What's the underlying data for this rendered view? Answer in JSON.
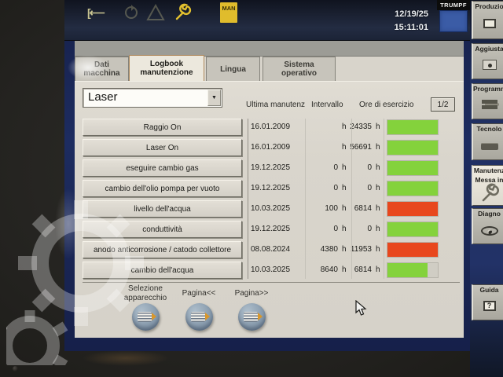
{
  "statusbar": {
    "date": "12/19/25",
    "time": "15:11:01",
    "man_badge": "MAN"
  },
  "brand": {
    "logo_text": "TRUMPF"
  },
  "tabs": [
    {
      "label": "Dati macchina",
      "active": false
    },
    {
      "label": "Logbook manutenzione",
      "active": true
    },
    {
      "label": "Lingua",
      "active": false
    },
    {
      "label": "Sistema operativo",
      "active": false
    }
  ],
  "device_select": {
    "value": "Laser"
  },
  "table": {
    "columns": {
      "last_maintenance": "Ultima manutenz",
      "interval": "Intervallo",
      "operating_hours": "Ore di esercizio"
    },
    "page_indicator": "1/2",
    "unit": "h",
    "rows": [
      {
        "name": "Raggio On",
        "date": "16.01.2009",
        "interval": "",
        "hours": "24335",
        "bar_percent": 100,
        "bar_color": "green"
      },
      {
        "name": "Laser On",
        "date": "16.01.2009",
        "interval": "",
        "hours": "56691",
        "bar_percent": 100,
        "bar_color": "green"
      },
      {
        "name": "eseguire cambio gas",
        "date": "19.12.2025",
        "interval": "0",
        "hours": "0",
        "bar_percent": 100,
        "bar_color": "green"
      },
      {
        "name": "cambio dell'olio pompa per vuoto",
        "date": "19.12.2025",
        "interval": "0",
        "hours": "0",
        "bar_percent": 100,
        "bar_color": "green"
      },
      {
        "name": "livello dell'acqua",
        "date": "10.03.2025",
        "interval": "100",
        "hours": "6814",
        "bar_percent": 100,
        "bar_color": "red"
      },
      {
        "name": "conduttività",
        "date": "19.12.2025",
        "interval": "0",
        "hours": "0",
        "bar_percent": 100,
        "bar_color": "green"
      },
      {
        "name": "anodo anticorrosione / catodo collettore",
        "date": "08.08.2024",
        "interval": "4380",
        "hours": "11953",
        "bar_percent": 100,
        "bar_color": "red"
      },
      {
        "name": "cambio dell'acqua",
        "date": "10.03.2025",
        "interval": "8640",
        "hours": "6814",
        "bar_percent": 79,
        "bar_color": "green"
      }
    ]
  },
  "footer_buttons": [
    {
      "label": "Selezione apparecchio"
    },
    {
      "label": "Pagina<<"
    },
    {
      "label": "Pagina>>"
    }
  ],
  "side_buttons": [
    {
      "label": "Produzio"
    },
    {
      "label": "Aggiusta"
    },
    {
      "label": "Programm"
    },
    {
      "label": "Tecnolo"
    },
    {
      "label": "Manutenz",
      "label2": "Messa in",
      "active": true
    },
    {
      "label": "Diagno"
    },
    {
      "label": "Guida"
    }
  ],
  "colors": {
    "bar_green": "#84d23c",
    "bar_red": "#e8471d",
    "man_badge_bg": "#e0bc2c",
    "logo_blue": "#3b5ca6"
  }
}
